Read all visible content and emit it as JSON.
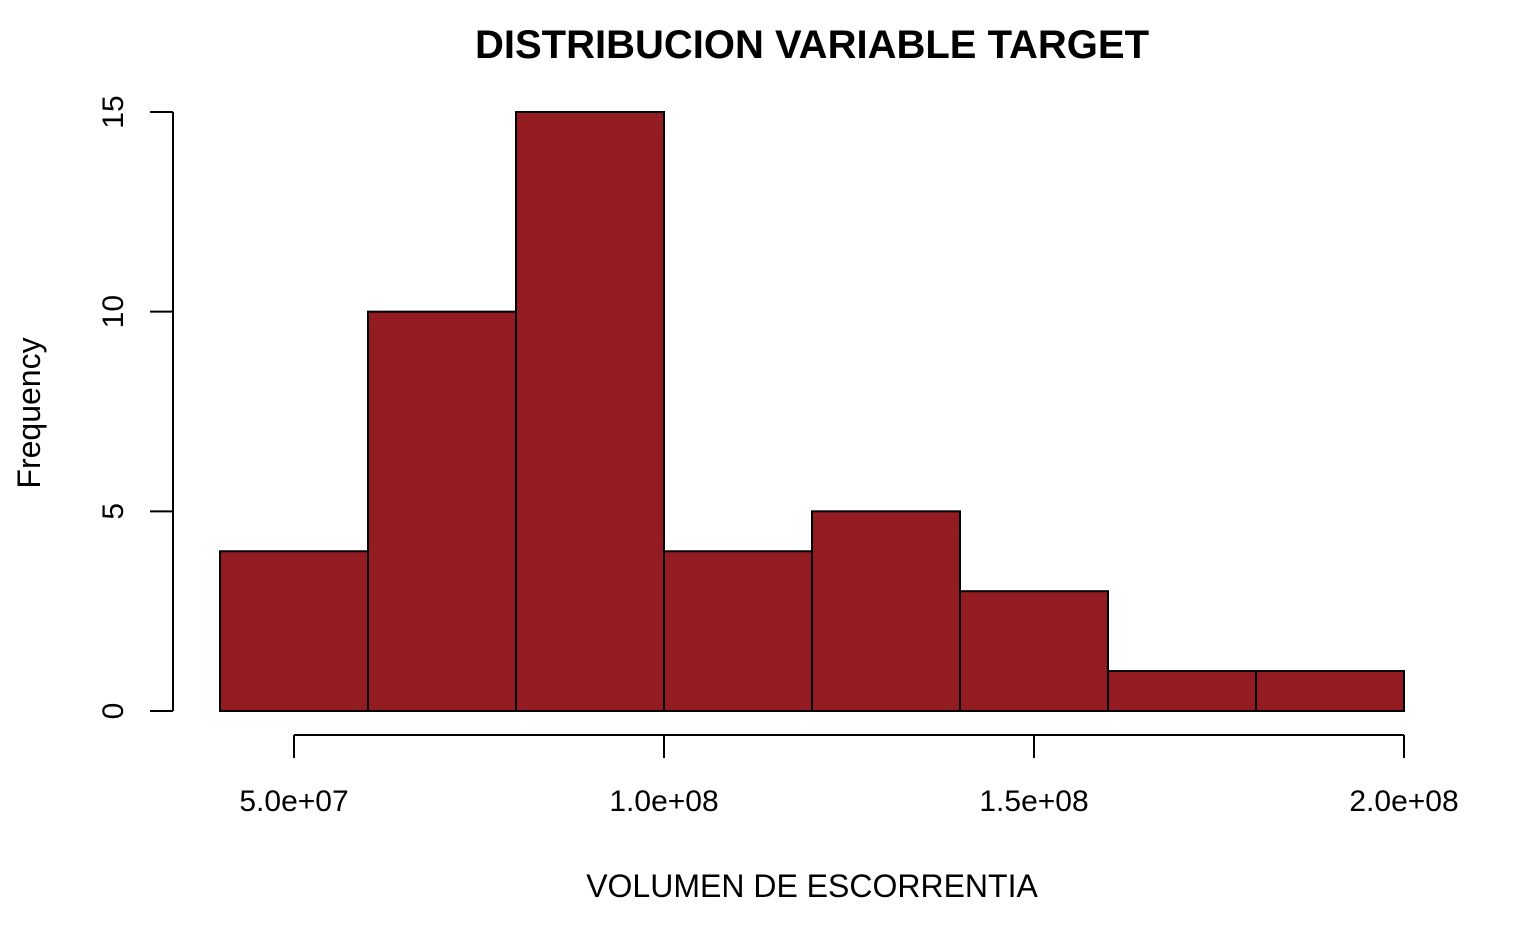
{
  "chart_data": {
    "type": "bar",
    "title": "DISTRIBUCION VARIABLE TARGET",
    "xlabel": "VOLUMEN DE ESCORRENTIA",
    "ylabel": "Frequency",
    "bins": [
      {
        "start": 40000000,
        "end": 60000000,
        "count": 4
      },
      {
        "start": 60000000,
        "end": 80000000,
        "count": 10
      },
      {
        "start": 80000000,
        "end": 100000000,
        "count": 15
      },
      {
        "start": 100000000,
        "end": 120000000,
        "count": 4
      },
      {
        "start": 120000000,
        "end": 140000000,
        "count": 5
      },
      {
        "start": 140000000,
        "end": 160000000,
        "count": 3
      },
      {
        "start": 160000000,
        "end": 180000000,
        "count": 1
      },
      {
        "start": 180000000,
        "end": 200000000,
        "count": 1
      }
    ],
    "x_ticks": [
      {
        "value": 50000000,
        "label": "5.0e+07"
      },
      {
        "value": 100000000,
        "label": "1.0e+08"
      },
      {
        "value": 150000000,
        "label": "1.5e+08"
      },
      {
        "value": 200000000,
        "label": "2.0e+08"
      }
    ],
    "y_ticks": [
      {
        "value": 0,
        "label": "0"
      },
      {
        "value": 5,
        "label": "5"
      },
      {
        "value": 10,
        "label": "10"
      },
      {
        "value": 15,
        "label": "15"
      }
    ],
    "xlim": [
      40000000,
      200000000
    ],
    "ylim": [
      0,
      15
    ],
    "grid": false,
    "bar_color": "#931c22",
    "edge_color": "#000000"
  }
}
